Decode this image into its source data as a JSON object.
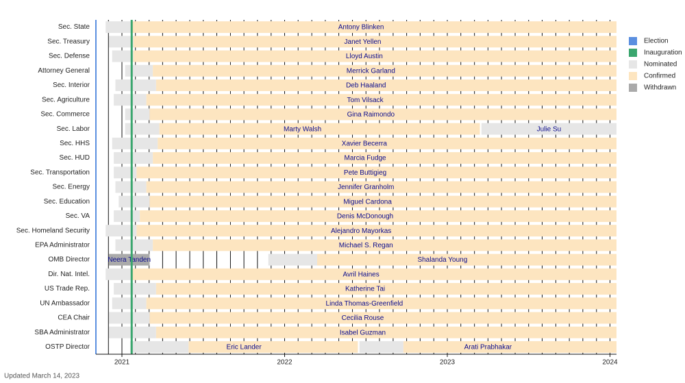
{
  "chart_data": {
    "type": "timeline",
    "categories": [
      "Sec. State",
      "Sec. Treasury",
      "Sec. Defense",
      "Attorney General",
      "Sec. Interior",
      "Sec. Agriculture",
      "Sec. Commerce",
      "Sec. Labor",
      "Sec. HHS",
      "Sec. HUD",
      "Sec. Transportation",
      "Sec. Energy",
      "Sec. Education",
      "Sec. VA",
      "Sec. Homeland Security",
      "EPA Administrator",
      "OMB Director",
      "Dir. Nat. Intel.",
      "US Trade Rep.",
      "UN Ambassador",
      "CEA Chair",
      "SBA Administrator",
      "OSTP Director"
    ],
    "rows": [
      [
        {
          "name": "Antony Blinken",
          "nominated": 2020.9,
          "confirmed": 2021.06
        }
      ],
      [
        {
          "name": "Janet Yellen",
          "nominated": 2020.92,
          "confirmed": 2021.07
        }
      ],
      [
        {
          "name": "Lloyd Austin",
          "nominated": 2020.94,
          "confirmed": 2021.07
        }
      ],
      [
        {
          "name": "Merrick Garland",
          "nominated": 2021.02,
          "confirmed": 2021.19
        }
      ],
      [
        {
          "name": "Deb Haaland",
          "nominated": 2020.96,
          "confirmed": 2021.21
        }
      ],
      [
        {
          "name": "Tom Vilsack",
          "nominated": 2020.95,
          "confirmed": 2021.15
        }
      ],
      [
        {
          "name": "Gina Raimondo",
          "nominated": 2021.02,
          "confirmed": 2021.17
        }
      ],
      [
        {
          "name": "Marty Walsh",
          "nominated": 2021.02,
          "confirmed": 2021.23,
          "end": 2023.2
        },
        {
          "name": "Julie Su",
          "nominated": 2023.21
        }
      ],
      [
        {
          "name": "Xavier Becerra",
          "nominated": 2020.94,
          "confirmed": 2021.22
        }
      ],
      [
        {
          "name": "Marcia Fudge",
          "nominated": 2020.95,
          "confirmed": 2021.19
        }
      ],
      [
        {
          "name": "Pete Buttigieg",
          "nominated": 2020.95,
          "confirmed": 2021.09
        }
      ],
      [
        {
          "name": "Jennifer Granholm",
          "nominated": 2020.96,
          "confirmed": 2021.15
        }
      ],
      [
        {
          "name": "Miguel Cardona",
          "nominated": 2020.98,
          "confirmed": 2021.17
        }
      ],
      [
        {
          "name": "Denis McDonough",
          "nominated": 2020.95,
          "confirmed": 2021.11
        }
      ],
      [
        {
          "name": "Alejandro Mayorkas",
          "nominated": 2020.9,
          "confirmed": 2021.09
        }
      ],
      [
        {
          "name": "Michael S. Regan",
          "nominated": 2020.96,
          "confirmed": 2021.19
        }
      ],
      [
        {
          "name": "Neera Tanden",
          "nominated": 2020.92,
          "withdrawn": 2021.17
        },
        {
          "name": "Shalanda Young",
          "nominated": 2021.9,
          "confirmed": 2022.2
        }
      ],
      [
        {
          "name": "Avril Haines",
          "nominated": 2020.9,
          "confirmed": 2021.06
        }
      ],
      [
        {
          "name": "Katherine Tai",
          "nominated": 2020.95,
          "confirmed": 2021.21
        }
      ],
      [
        {
          "name": "Linda Thomas-Greenfield",
          "nominated": 2020.94,
          "confirmed": 2021.15
        }
      ],
      [
        {
          "name": "Cecilia Rouse",
          "nominated": 2020.92,
          "confirmed": 2021.17
        }
      ],
      [
        {
          "name": "Isabel Guzman",
          "nominated": 2020.92,
          "confirmed": 2021.21
        }
      ],
      [
        {
          "name": "Eric Lander",
          "nominated": 2021.05,
          "confirmed": 2021.41,
          "end": 2022.45
        },
        {
          "name": "Arati Prabhakar",
          "nominated": 2022.46,
          "confirmed": 2022.73
        }
      ]
    ],
    "election": 2020.84,
    "inauguration": 2021.06,
    "legend": [
      {
        "name": "Election",
        "color": "#5b8fe0"
      },
      {
        "name": "Inauguration",
        "color": "#3aa66e"
      },
      {
        "name": "Nominated",
        "color": "#e6e6e6"
      },
      {
        "name": "Confirmed",
        "color": "#fde5c0"
      },
      {
        "name": "Withdrawn",
        "color": "#aaaaaa"
      }
    ],
    "xlim": [
      2020.84,
      2024.04
    ],
    "xticks": [
      2021,
      2022,
      2023,
      2024
    ],
    "minor_xticks": [
      2020.917,
      2021,
      2021.083,
      2021.167,
      2021.25,
      2021.333,
      2021.417,
      2021.5,
      2021.583,
      2021.667,
      2021.75,
      2021.833,
      2021.917,
      2022,
      2022.083,
      2022.167,
      2022.25,
      2022.333,
      2022.417,
      2022.5,
      2022.583,
      2022.667,
      2022.75,
      2022.833,
      2022.917,
      2023,
      2023.083,
      2023.167,
      2023.25,
      2023.333,
      2023.417,
      2023.5,
      2023.583,
      2023.667,
      2023.75,
      2023.833,
      2023.917,
      2024
    ],
    "footnote": "Updated March 14, 2023"
  }
}
